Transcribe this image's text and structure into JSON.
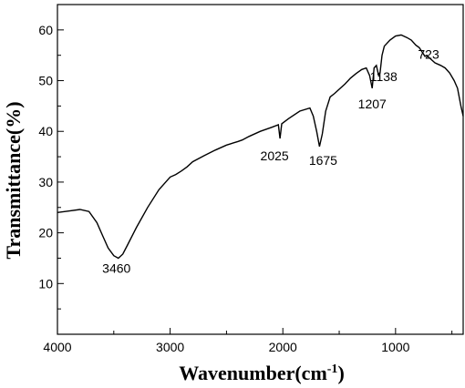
{
  "chart_data": {
    "type": "line",
    "title": "",
    "xlabel": "Wavenumber(cm",
    "xlabel_sup": "-1",
    "xlabel_close": ")",
    "ylabel": "Transmittance(%)",
    "xlim": [
      4000,
      400
    ],
    "ylim": [
      0,
      65
    ],
    "x_reversed": true,
    "grid": false,
    "x_ticks": [
      4000,
      3000,
      2000,
      1000
    ],
    "x_tick_labels": [
      "4000",
      "3000",
      "2000",
      "1000"
    ],
    "y_ticks": [
      10,
      20,
      30,
      40,
      50,
      60
    ],
    "y_tick_labels": [
      "10",
      "20",
      "30",
      "40",
      "50",
      "60"
    ],
    "line_color": "#000000",
    "series": [
      {
        "x": [
          4000,
          3900,
          3800,
          3720,
          3650,
          3600,
          3550,
          3500,
          3460,
          3420,
          3380,
          3300,
          3200,
          3100,
          3000,
          2950,
          2900,
          2850,
          2800,
          2700,
          2600,
          2500,
          2400,
          2360,
          2300,
          2200,
          2100,
          2040,
          2025,
          2010,
          1950,
          1850,
          1760,
          1730,
          1700,
          1675,
          1650,
          1620,
          1580,
          1540,
          1500,
          1450,
          1400,
          1350,
          1300,
          1260,
          1230,
          1207,
          1190,
          1170,
          1150,
          1138,
          1120,
          1100,
          1050,
          1000,
          950,
          900,
          860,
          820,
          790,
          760,
          740,
          723,
          700,
          650,
          600,
          560,
          520,
          480,
          450,
          420,
          400
        ],
        "y": [
          24.0,
          24.3,
          24.6,
          24.2,
          22.0,
          19.5,
          17.0,
          15.5,
          15.0,
          15.8,
          17.5,
          21.0,
          25.0,
          28.5,
          31.0,
          31.5,
          32.2,
          33.0,
          34.0,
          35.2,
          36.3,
          37.3,
          38.0,
          38.3,
          39.0,
          40.0,
          40.8,
          41.3,
          38.6,
          41.5,
          42.5,
          44.0,
          44.6,
          43.0,
          40.0,
          37.0,
          39.5,
          44.0,
          46.8,
          47.5,
          48.3,
          49.3,
          50.5,
          51.4,
          52.2,
          52.5,
          51.0,
          48.5,
          52.5,
          53.0,
          51.0,
          51.5,
          55.0,
          56.8,
          58.0,
          58.8,
          59.0,
          58.5,
          58.0,
          57.0,
          56.5,
          55.5,
          54.8,
          55.0,
          54.5,
          53.5,
          53.0,
          52.5,
          51.5,
          50.0,
          48.5,
          45.0,
          43.0
        ]
      }
    ],
    "annotations": [
      {
        "text": "3460",
        "x": 3460,
        "y": 15.0
      },
      {
        "text": "2025",
        "x": 2025,
        "y": 38.6
      },
      {
        "text": "1675",
        "x": 1675,
        "y": 37.0
      },
      {
        "text": "1207",
        "x": 1207,
        "y": 48.5
      },
      {
        "text": "1138",
        "x": 1138,
        "y": 51.0
      },
      {
        "text": "723",
        "x": 723,
        "y": 55.0
      }
    ]
  }
}
